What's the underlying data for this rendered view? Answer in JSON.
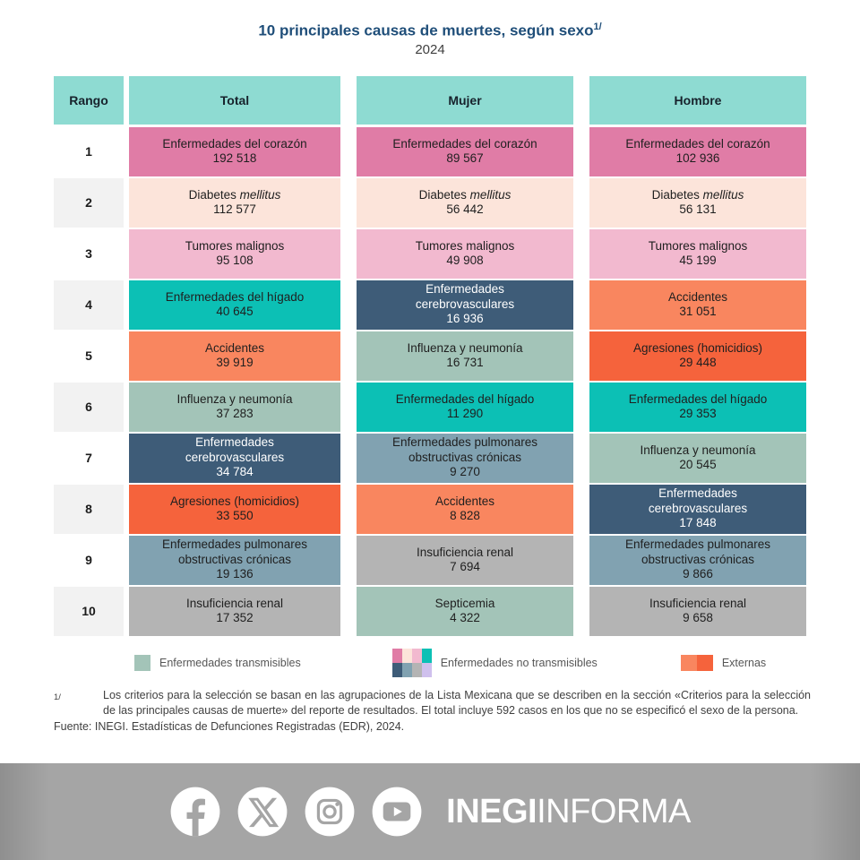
{
  "title": {
    "text": "10 principales causas de muertes, según sexo",
    "superscript": "1/",
    "year": "2024"
  },
  "palette": {
    "pink": "#e07ca6",
    "peach": "#fce4da",
    "light_pink": "#f2b9cf",
    "teal": "#0cc0b5",
    "dark_blue": "#3e5c78",
    "orange": "#f9865f",
    "dark_orange": "#f5633c",
    "sage": "#a3c4b8",
    "blue_gray": "#81a2b1",
    "gray": "#b4b4b4",
    "lavender": "#cfc0ed",
    "header_teal": "#8edbd2",
    "title_navy": "#1f4e79",
    "footer_gray": "#a5a5a5"
  },
  "table": {
    "headers": {
      "rank": "Rango",
      "total": "Total",
      "mujer": "Mujer",
      "hombre": "Hombre"
    },
    "rows": [
      {
        "rank": "1",
        "cells": [
          {
            "name": "Enfermedades del corazón",
            "value": "192 518",
            "color": "pink",
            "text": "dark"
          },
          {
            "name": "Enfermedades del corazón",
            "value": "89 567",
            "color": "pink",
            "text": "dark"
          },
          {
            "name": "Enfermedades del corazón",
            "value": "102 936",
            "color": "pink",
            "text": "dark"
          }
        ]
      },
      {
        "rank": "2",
        "cells": [
          {
            "name": "Diabetes",
            "name_italic": "mellitus",
            "value": "112 577",
            "color": "peach",
            "text": "dark"
          },
          {
            "name": "Diabetes",
            "name_italic": "mellitus",
            "value": "56 442",
            "color": "peach",
            "text": "dark"
          },
          {
            "name": "Diabetes",
            "name_italic": "mellitus",
            "value": "56 131",
            "color": "peach",
            "text": "dark"
          }
        ]
      },
      {
        "rank": "3",
        "cells": [
          {
            "name": "Tumores malignos",
            "value": "95 108",
            "color": "light_pink",
            "text": "dark"
          },
          {
            "name": "Tumores malignos",
            "value": "49 908",
            "color": "light_pink",
            "text": "dark"
          },
          {
            "name": "Tumores malignos",
            "value": "45 199",
            "color": "light_pink",
            "text": "dark"
          }
        ]
      },
      {
        "rank": "4",
        "cells": [
          {
            "name": "Enfermedades del hígado",
            "value": "40 645",
            "color": "teal",
            "text": "dark"
          },
          {
            "name": "Enfermedades cerebrovasculares",
            "value": "16 936",
            "color": "dark_blue",
            "text": "light"
          },
          {
            "name": "Accidentes",
            "value": "31 051",
            "color": "orange",
            "text": "dark"
          }
        ]
      },
      {
        "rank": "5",
        "cells": [
          {
            "name": "Accidentes",
            "value": "39 919",
            "color": "orange",
            "text": "dark"
          },
          {
            "name": "Influenza y neumonía",
            "value": "16 731",
            "color": "sage",
            "text": "dark"
          },
          {
            "name": "Agresiones (homicidios)",
            "value": "29 448",
            "color": "dark_orange",
            "text": "dark"
          }
        ]
      },
      {
        "rank": "6",
        "cells": [
          {
            "name": "Influenza y neumonía",
            "value": "37 283",
            "color": "sage",
            "text": "dark"
          },
          {
            "name": "Enfermedades del hígado",
            "value": "11 290",
            "color": "teal",
            "text": "dark"
          },
          {
            "name": "Enfermedades del hígado",
            "value": "29 353",
            "color": "teal",
            "text": "dark"
          }
        ]
      },
      {
        "rank": "7",
        "cells": [
          {
            "name": "Enfermedades cerebrovasculares",
            "value": "34 784",
            "color": "dark_blue",
            "text": "light"
          },
          {
            "name": "Enfermedades pulmonares obstructivas crónicas",
            "value": "9 270",
            "color": "blue_gray",
            "text": "dark"
          },
          {
            "name": "Influenza y neumonía",
            "value": "20 545",
            "color": "sage",
            "text": "dark"
          }
        ]
      },
      {
        "rank": "8",
        "cells": [
          {
            "name": "Agresiones (homicidios)",
            "value": "33 550",
            "color": "dark_orange",
            "text": "dark"
          },
          {
            "name": "Accidentes",
            "value": "8 828",
            "color": "orange",
            "text": "dark"
          },
          {
            "name": "Enfermedades cerebrovasculares",
            "value": "17 848",
            "color": "dark_blue",
            "text": "light"
          }
        ]
      },
      {
        "rank": "9",
        "cells": [
          {
            "name": "Enfermedades pulmonares obstructivas crónicas",
            "value": "19 136",
            "color": "blue_gray",
            "text": "dark"
          },
          {
            "name": "Insuficiencia renal",
            "value": "7 694",
            "color": "gray",
            "text": "dark"
          },
          {
            "name": "Enfermedades pulmonares obstructivas crónicas",
            "value": "9 866",
            "color": "blue_gray",
            "text": "dark"
          }
        ]
      },
      {
        "rank": "10",
        "cells": [
          {
            "name": "Insuficiencia renal",
            "value": "17 352",
            "color": "gray",
            "text": "dark"
          },
          {
            "name": "Septicemia",
            "value": "4 322",
            "color": "sage",
            "text": "dark"
          },
          {
            "name": "Insuficiencia renal",
            "value": "9 658",
            "color": "gray",
            "text": "dark"
          }
        ]
      }
    ]
  },
  "legend": {
    "items": [
      {
        "label": "Enfermedades transmisibles",
        "swatch": [
          "sage"
        ]
      },
      {
        "label": "Enfermedades no transmisibles",
        "swatch": [
          "pink",
          "peach",
          "light_pink",
          "teal",
          "dark_blue",
          "blue_gray",
          "gray",
          "lavender"
        ]
      },
      {
        "label": "Externas",
        "swatch": [
          "orange",
          "dark_orange"
        ]
      }
    ]
  },
  "footnote": {
    "marker": "1/",
    "text": "Los criterios para la selección se basan en las agrupaciones de la Lista Mexicana que se describen en la sección «Criterios para la selección de las principales causas de muerte» del reporte de resultados. El total incluye 592 casos en los que no se especificó el sexo de la persona.",
    "fuente": "Fuente: INEGI. Estadísticas de Defunciones Registradas (EDR), 2024."
  },
  "footer": {
    "icons": [
      "facebook-icon",
      "x-icon",
      "instagram-icon",
      "youtube-icon"
    ],
    "brand_bold": "INEGI",
    "brand_light": "INFORMA"
  },
  "chart_data": {
    "type": "table",
    "title": "10 principales causas de muertes, según sexo",
    "subtitle": "2024",
    "columns": [
      "Rango",
      "Total",
      "Mujer",
      "Hombre"
    ],
    "rows": [
      {
        "rango": 1,
        "total": {
          "causa": "Enfermedades del corazón",
          "defunciones": 192518
        },
        "mujer": {
          "causa": "Enfermedades del corazón",
          "defunciones": 89567
        },
        "hombre": {
          "causa": "Enfermedades del corazón",
          "defunciones": 102936
        }
      },
      {
        "rango": 2,
        "total": {
          "causa": "Diabetes mellitus",
          "defunciones": 112577
        },
        "mujer": {
          "causa": "Diabetes mellitus",
          "defunciones": 56442
        },
        "hombre": {
          "causa": "Diabetes mellitus",
          "defunciones": 56131
        }
      },
      {
        "rango": 3,
        "total": {
          "causa": "Tumores malignos",
          "defunciones": 95108
        },
        "mujer": {
          "causa": "Tumores malignos",
          "defunciones": 49908
        },
        "hombre": {
          "causa": "Tumores malignos",
          "defunciones": 45199
        }
      },
      {
        "rango": 4,
        "total": {
          "causa": "Enfermedades del hígado",
          "defunciones": 40645
        },
        "mujer": {
          "causa": "Enfermedades cerebrovasculares",
          "defunciones": 16936
        },
        "hombre": {
          "causa": "Accidentes",
          "defunciones": 31051
        }
      },
      {
        "rango": 5,
        "total": {
          "causa": "Accidentes",
          "defunciones": 39919
        },
        "mujer": {
          "causa": "Influenza y neumonía",
          "defunciones": 16731
        },
        "hombre": {
          "causa": "Agresiones (homicidios)",
          "defunciones": 29448
        }
      },
      {
        "rango": 6,
        "total": {
          "causa": "Influenza y neumonía",
          "defunciones": 37283
        },
        "mujer": {
          "causa": "Enfermedades del hígado",
          "defunciones": 11290
        },
        "hombre": {
          "causa": "Enfermedades del hígado",
          "defunciones": 29353
        }
      },
      {
        "rango": 7,
        "total": {
          "causa": "Enfermedades cerebrovasculares",
          "defunciones": 34784
        },
        "mujer": {
          "causa": "Enfermedades pulmonares obstructivas crónicas",
          "defunciones": 9270
        },
        "hombre": {
          "causa": "Influenza y neumonía",
          "defunciones": 20545
        }
      },
      {
        "rango": 8,
        "total": {
          "causa": "Agresiones (homicidios)",
          "defunciones": 33550
        },
        "mujer": {
          "causa": "Accidentes",
          "defunciones": 8828
        },
        "hombre": {
          "causa": "Enfermedades cerebrovasculares",
          "defunciones": 17848
        }
      },
      {
        "rango": 9,
        "total": {
          "causa": "Enfermedades pulmonares obstructivas crónicas",
          "defunciones": 19136
        },
        "mujer": {
          "causa": "Insuficiencia renal",
          "defunciones": 7694
        },
        "hombre": {
          "causa": "Enfermedades pulmonares obstructivas crónicas",
          "defunciones": 9866
        }
      },
      {
        "rango": 10,
        "total": {
          "causa": "Insuficiencia renal",
          "defunciones": 17352
        },
        "mujer": {
          "causa": "Septicemia",
          "defunciones": 4322
        },
        "hombre": {
          "causa": "Insuficiencia renal",
          "defunciones": 9658
        }
      }
    ],
    "legend": [
      "Enfermedades transmisibles",
      "Enfermedades no transmisibles",
      "Externas"
    ]
  }
}
